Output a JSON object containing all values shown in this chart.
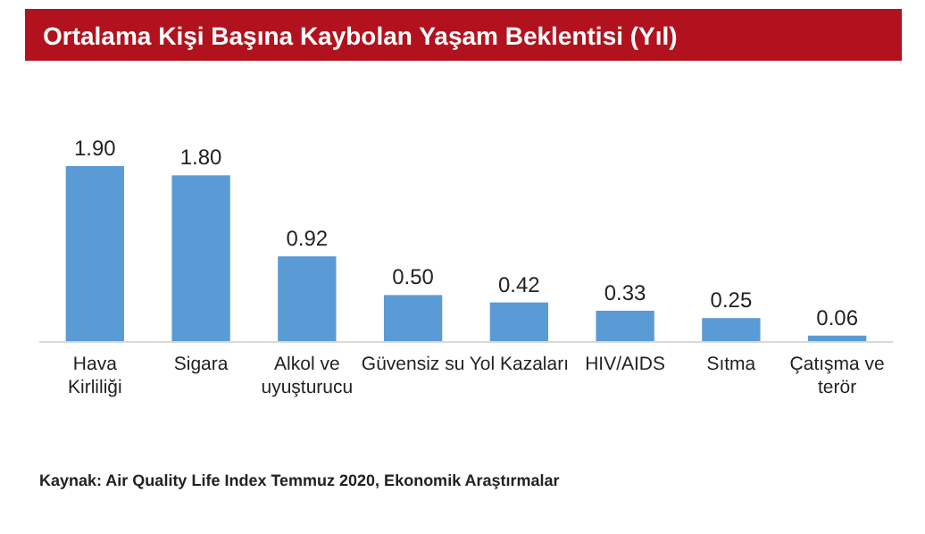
{
  "chart_data": {
    "type": "bar",
    "title": "Ortalama Kişi Başına Kaybolan Yaşam Beklentisi (Yıl)",
    "categories": [
      "Hava Kirliliği",
      "Sigara",
      "Alkol ve uyuşturucu",
      "Güvensiz su",
      "Yol Kazaları",
      "HIV/AIDS",
      "Sıtma",
      "Çatışma ve terör"
    ],
    "values": [
      1.9,
      1.8,
      0.92,
      0.5,
      0.42,
      0.33,
      0.25,
      0.06
    ],
    "value_labels": [
      "1.90",
      "1.80",
      "0.92",
      "0.50",
      "0.42",
      "0.33",
      "0.25",
      "0.06"
    ],
    "color": "#5b9bd5",
    "annotations": [
      "Kaynak: Air Quality Life Index Temmuz 2020, Ekonomik Araştırmalar"
    ]
  }
}
